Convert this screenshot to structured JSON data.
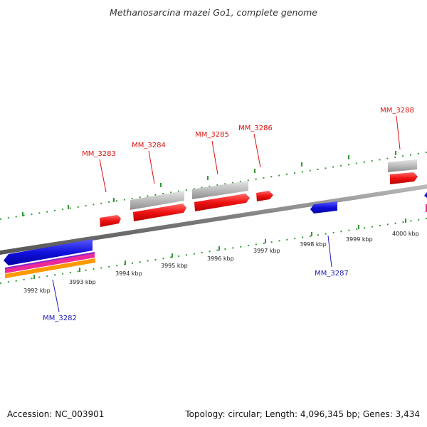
{
  "title": "Methanosarcina mazei Go1, complete genome",
  "footer": {
    "accession": "Accession: NC_003901",
    "topology": "Topology: circular; Length: 4,096,345 bp; Genes: 3,434"
  },
  "ticks": [
    "3992 kbp",
    "3993 kbp",
    "3994 kbp",
    "3995 kbp",
    "3996 kbp",
    "3997 kbp",
    "3998 kbp",
    "3999 kbp",
    "4000 kbp"
  ],
  "genes": {
    "top": [
      "MM_3283",
      "MM_3284",
      "MM_3285",
      "MM_3286",
      "MM_3288"
    ],
    "bottom": [
      "MM_3282",
      "MM_3287"
    ]
  },
  "colors": {
    "forward_gene": "#ee1111",
    "reverse_gene": "#1111dd",
    "label_forward": "#dd1111",
    "label_reverse": "#1a1ab0",
    "rna_pink": "#ee2a9a",
    "rna_orange": "#ff9900",
    "rna_purple": "#8a22cc",
    "gray_feature": "#bbbbbb",
    "tick_green": "#339933",
    "backbone": "#777777"
  }
}
